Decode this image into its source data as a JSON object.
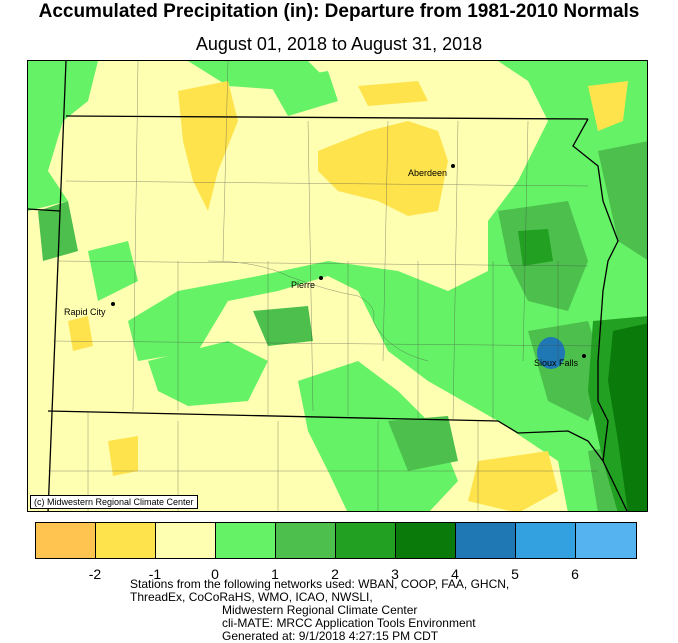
{
  "title": "Accumulated Precipitation (in): Departure from 1981-2010 Normals",
  "subtitle": "August 01, 2018 to August 31, 2018",
  "credit": "(c) Midwestern Regional Climate Center",
  "cities": [
    {
      "name": "Aberdeen"
    },
    {
      "name": "Pierre"
    },
    {
      "name": "Rapid City"
    },
    {
      "name": "Sioux Falls"
    }
  ],
  "legend": {
    "colors": [
      "#fec44f",
      "#fee34d",
      "#ffffb2",
      "#66f266",
      "#4cbf4c",
      "#22a022",
      "#0a7a0a",
      "#1f78b4",
      "#33a0e0",
      "#55b4f0"
    ],
    "ticks": [
      "-2",
      "-1",
      "0",
      "1",
      "2",
      "3",
      "4",
      "5",
      "6"
    ]
  },
  "footer": {
    "line1": "Stations from the following networks used: WBAN, COOP, FAA, GHCN,",
    "line2": "ThreadEx, CoCoRaHS, WMO, ICAO, NWSLI,",
    "line3": "Midwestern Regional Climate Center",
    "line4": "cli-MATE: MRCC Application Tools Environment",
    "line5": "Generated at: 9/1/2018 4:27:15 PM CDT"
  }
}
